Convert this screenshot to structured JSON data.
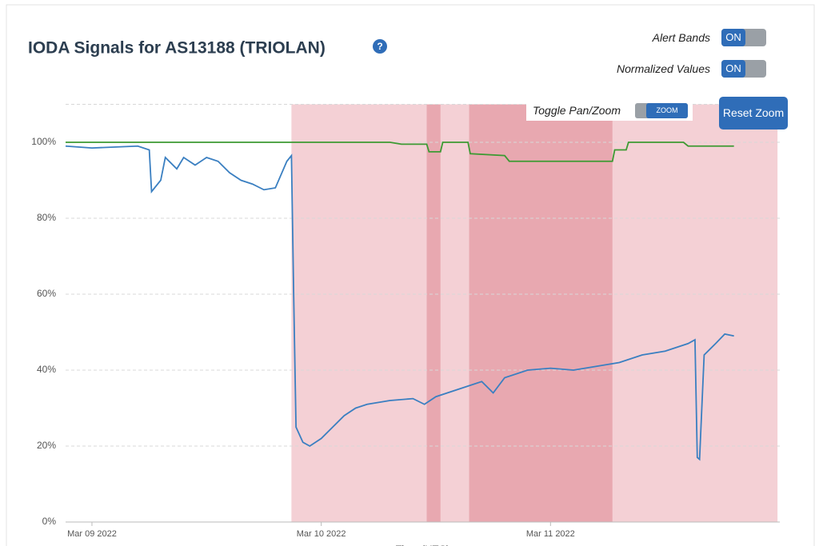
{
  "header": {
    "title": "IODA Signals for AS13188 (TRIOLAN)",
    "help": "?"
  },
  "controls": {
    "alert_bands": {
      "label": "Alert Bands",
      "state": "ON"
    },
    "normalized": {
      "label": "Normalized Values",
      "state": "ON"
    },
    "pan_zoom": {
      "label": "Toggle Pan/Zoom",
      "state": "ZOOM"
    },
    "reset": "Reset Zoom"
  },
  "chart_data": {
    "type": "line",
    "xlabel": "Time (UTC)",
    "xlim": [
      -0.115,
      3.0
    ],
    "ylim": [
      0,
      110
    ],
    "xticks": [
      {
        "value": 0,
        "label": "Mar 09 2022"
      },
      {
        "value": 1,
        "label": "Mar 10 2022"
      },
      {
        "value": 2,
        "label": "Mar 11 2022"
      }
    ],
    "yticks": [
      {
        "value": 0,
        "label": "0%"
      },
      {
        "value": 20,
        "label": "20%"
      },
      {
        "value": 40,
        "label": "40%"
      },
      {
        "value": 60,
        "label": "60%"
      },
      {
        "value": 80,
        "label": "80%"
      },
      {
        "value": 100,
        "label": "100%"
      },
      {
        "value": 110,
        "label": ""
      }
    ],
    "grid": true,
    "bands": [
      {
        "x0": 0.87,
        "x1": 2.99,
        "color": "#f4d0d5"
      },
      {
        "x0": 1.46,
        "x1": 1.52,
        "color": "#e8a8b0"
      },
      {
        "x0": 1.645,
        "x1": 2.27,
        "color": "#e8a8b0"
      }
    ],
    "series": [
      {
        "color": "#3a7fc1",
        "x": [
          -0.115,
          0.0,
          0.2,
          0.25,
          0.26,
          0.3,
          0.32,
          0.37,
          0.4,
          0.45,
          0.5,
          0.55,
          0.6,
          0.65,
          0.7,
          0.75,
          0.8,
          0.85,
          0.87,
          0.88,
          0.89,
          0.92,
          0.95,
          1.0,
          1.05,
          1.1,
          1.15,
          1.2,
          1.3,
          1.4,
          1.45,
          1.5,
          1.6,
          1.7,
          1.75,
          1.8,
          1.9,
          2.0,
          2.1,
          2.2,
          2.3,
          2.4,
          2.5,
          2.6,
          2.63,
          2.64,
          2.65,
          2.67,
          2.72,
          2.76,
          2.8
        ],
        "values": [
          99,
          98.5,
          99,
          98,
          87,
          90,
          96,
          93,
          96,
          94,
          96,
          95,
          92,
          90,
          89,
          87.5,
          88,
          95,
          96.5,
          59,
          25,
          21,
          20,
          22,
          25,
          28,
          30,
          31,
          32,
          32.5,
          31,
          33,
          35,
          37,
          34,
          38,
          40,
          40.5,
          40,
          41,
          42,
          44,
          45,
          47,
          48,
          17,
          16.5,
          44,
          47,
          49.5,
          49
        ]
      },
      {
        "color": "#3c9a32",
        "x": [
          -0.115,
          0.75,
          1.3,
          1.35,
          1.46,
          1.47,
          1.52,
          1.53,
          1.64,
          1.65,
          1.8,
          1.82,
          2.27,
          2.28,
          2.33,
          2.34,
          2.58,
          2.6,
          2.8
        ],
        "values": [
          100,
          100,
          100,
          99.5,
          99.5,
          97.5,
          97.5,
          100,
          100,
          97,
          96.5,
          95,
          95,
          98,
          98,
          100,
          100,
          99,
          99
        ]
      }
    ]
  }
}
